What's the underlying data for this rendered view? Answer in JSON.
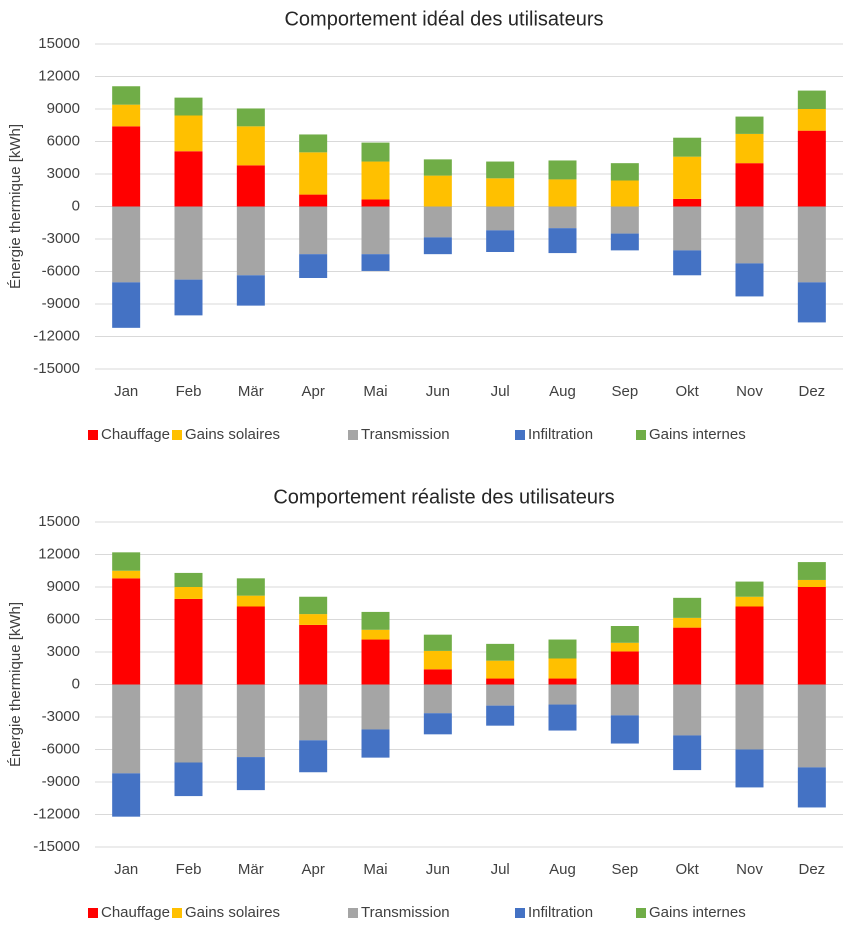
{
  "chart_data": [
    {
      "type": "bar",
      "stacked": true,
      "title": "Comportement idéal des utilisateurs",
      "y_label": "Énergie thermique [kWh]",
      "categories": [
        "Jan",
        "Feb",
        "Mär",
        "Apr",
        "Mai",
        "Jun",
        "Jul",
        "Aug",
        "Sep",
        "Okt",
        "Nov",
        "Dez"
      ],
      "ylim": [
        -15000,
        15000
      ],
      "yticks": [
        -15000,
        -12000,
        -9000,
        -6000,
        -3000,
        0,
        3000,
        6000,
        9000,
        12000,
        15000
      ],
      "grid": true,
      "legend": "bottom",
      "series": [
        {
          "name": "Chauffage",
          "color": "#ff0000",
          "values": [
            7400,
            5100,
            3800,
            1100,
            650,
            0,
            0,
            0,
            0,
            700,
            4000,
            7000
          ]
        },
        {
          "name": "Gains solaires",
          "color": "#ffc000",
          "values": [
            2000,
            3300,
            3600,
            3900,
            3500,
            2850,
            2600,
            2500,
            2400,
            3900,
            2700,
            2000
          ]
        },
        {
          "name": "Transmission",
          "color": "#a5a5a5",
          "values": [
            -7000,
            -6750,
            -6350,
            -4400,
            -4400,
            -2850,
            -2200,
            -2000,
            -2500,
            -4050,
            -5250,
            -7000
          ]
        },
        {
          "name": "Infiltration",
          "color": "#4472c4",
          "values": [
            -4200,
            -3300,
            -2800,
            -2200,
            -1550,
            -1550,
            -2000,
            -2300,
            -1550,
            -2300,
            -3050,
            -3700
          ]
        },
        {
          "name": "Gains internes",
          "color": "#70ad47",
          "values": [
            1700,
            1650,
            1650,
            1650,
            1750,
            1500,
            1550,
            1750,
            1600,
            1750,
            1600,
            1700
          ]
        }
      ]
    },
    {
      "type": "bar",
      "stacked": true,
      "title": "Comportement réaliste des utilisateurs",
      "y_label": "Énergie thermique [kWh]",
      "categories": [
        "Jan",
        "Feb",
        "Mär",
        "Apr",
        "Mai",
        "Jun",
        "Jul",
        "Aug",
        "Sep",
        "Okt",
        "Nov",
        "Dez"
      ],
      "ylim": [
        -15000,
        15000
      ],
      "yticks": [
        -15000,
        -12000,
        -9000,
        -6000,
        -3000,
        0,
        3000,
        6000,
        9000,
        12000,
        15000
      ],
      "grid": true,
      "legend": "bottom",
      "series": [
        {
          "name": "Chauffage",
          "color": "#ff0000",
          "values": [
            9800,
            7900,
            7200,
            5500,
            4150,
            1400,
            550,
            550,
            3050,
            5250,
            7200,
            9000
          ]
        },
        {
          "name": "Gains solaires",
          "color": "#ffc000",
          "values": [
            700,
            1100,
            1000,
            1000,
            900,
            1700,
            1650,
            1850,
            800,
            900,
            900,
            650
          ]
        },
        {
          "name": "Transmission",
          "color": "#a5a5a5",
          "values": [
            -8200,
            -7200,
            -6700,
            -5150,
            -4150,
            -2650,
            -1950,
            -1850,
            -2850,
            -4700,
            -6000,
            -7650
          ]
        },
        {
          "name": "Infiltration",
          "color": "#4472c4",
          "values": [
            -4000,
            -3100,
            -3050,
            -2950,
            -2600,
            -1950,
            -1850,
            -2400,
            -2600,
            -3200,
            -3500,
            -3700
          ]
        },
        {
          "name": "Gains internes",
          "color": "#70ad47",
          "values": [
            1700,
            1300,
            1600,
            1600,
            1650,
            1500,
            1550,
            1750,
            1550,
            1850,
            1400,
            1650
          ]
        }
      ]
    }
  ]
}
